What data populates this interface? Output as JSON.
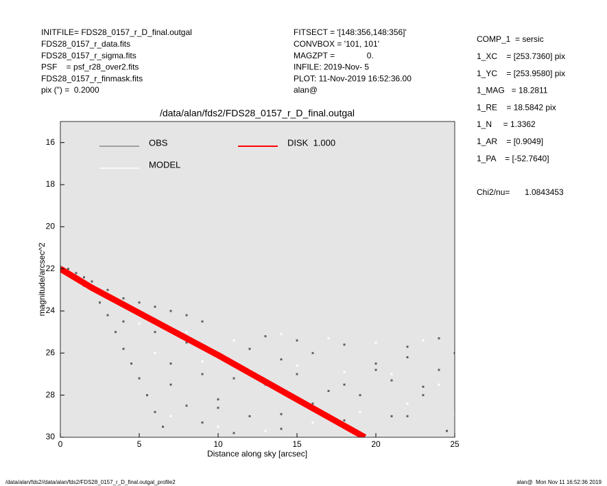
{
  "chart_data": {
    "type": "scatter",
    "title": "/data/alan/fds2/FDS28_0157_r_D_final.outgal",
    "xlabel": "Distance along sky [arcsec]",
    "ylabel": "magnitude/arcsec^2",
    "header_left": [
      "INITFILE= FDS28_0157_r_D_final.outgal",
      "FDS28_0157_r_data.fits",
      "FDS28_0157_r_sigma.fits",
      "PSF    = psf_r28_over2.fits",
      "FDS28_0157_r_finmask.fits",
      "pix (\") =  0.2000"
    ],
    "header_middle": [
      "FITSECT = '[148:356,148:356]'",
      "CONVBOX = '101, 101'",
      "MAGZPT =              0.",
      "INFILE: 2019-Nov- 5",
      "PLOT: 11-Nov-2019 16:52:36.00",
      "alan@"
    ],
    "params": [
      "COMP_1  = sersic",
      "1_XC    = [253.7360] pix",
      "1_YC    = [253.9580] pix",
      "1_MAG   = 18.2811",
      "1_RE    = 18.5842 pix",
      "1_N     = 1.3362",
      "1_AR    = [0.9049]",
      "1_PA    = [-52.7640]"
    ],
    "chi2_label": "Chi2/nu=",
    "chi2_value": "1.0843453",
    "footer_left": "/data/alan/fds2//data/alan/fds2/FDS28_0157_r_D_final.outgal_profile2",
    "footer_right": "alan@  Mon Nov 11 16:52:36 2019",
    "xlim": [
      0,
      25
    ],
    "xticks": [
      0,
      5,
      10,
      15,
      20,
      25
    ],
    "ylim": [
      15,
      30
    ],
    "yticks": [
      16,
      18,
      20,
      22,
      24,
      26,
      28,
      30
    ],
    "y_inverted": true,
    "background": "#e5e5e5",
    "series": [
      {
        "name": "OBS",
        "color": "#5f5f5f",
        "x": [
          0,
          0.5,
          1,
          1.5,
          2,
          3,
          4,
          5,
          6,
          7,
          8,
          9,
          1.5,
          2.5,
          3,
          3.5,
          4,
          4.5,
          5,
          5.5,
          6,
          6.5,
          7,
          8,
          9,
          10,
          12,
          14,
          16,
          18,
          20,
          22,
          24,
          25,
          13,
          15,
          11,
          21,
          23,
          24.5,
          4,
          6,
          8,
          10,
          12,
          14,
          16,
          18,
          20,
          22,
          24,
          7,
          9,
          11,
          13,
          15,
          17,
          19,
          21,
          23,
          10,
          14,
          18,
          22
        ],
        "values": [
          21.9,
          22.0,
          22.2,
          22.4,
          22.6,
          23.0,
          23.4,
          23.6,
          23.8,
          24.0,
          24.2,
          24.5,
          22.8,
          23.6,
          24.2,
          25.0,
          25.8,
          26.5,
          27.2,
          28.0,
          28.8,
          29.5,
          27.5,
          28.5,
          29.3,
          28.2,
          29.0,
          29.6,
          28.4,
          27.5,
          26.8,
          25.7,
          25.3,
          26.0,
          25.2,
          25.4,
          29.8,
          29.0,
          28.0,
          29.7,
          24.5,
          25.0,
          25.5,
          26.0,
          25.8,
          26.3,
          26.0,
          25.6,
          26.5,
          26.2,
          26.8,
          26.5,
          27.0,
          27.2,
          27.5,
          27.0,
          27.8,
          28.0,
          27.3,
          27.6,
          28.6,
          28.9,
          29.2,
          29.0
        ]
      },
      {
        "name": "MODEL",
        "color": "#ffffff",
        "x": [
          5,
          8,
          11,
          14,
          17,
          20,
          23,
          6,
          9,
          12,
          15,
          18,
          21,
          24,
          7,
          10,
          13,
          16,
          19,
          22,
          25
        ],
        "values": [
          24.6,
          25.0,
          25.4,
          25.1,
          25.3,
          25.5,
          25.4,
          26.0,
          26.4,
          26.8,
          26.6,
          26.9,
          27.0,
          27.5,
          29.0,
          29.5,
          29.7,
          29.3,
          28.8,
          28.4,
          28.9
        ]
      },
      {
        "name": "DISK  1.000",
        "color": "#ff0000",
        "line": true,
        "x": [
          0,
          2,
          5,
          10,
          15,
          19.3
        ],
        "values": [
          22.0,
          22.9,
          24.1,
          26.1,
          28.2,
          30.0
        ]
      }
    ]
  }
}
